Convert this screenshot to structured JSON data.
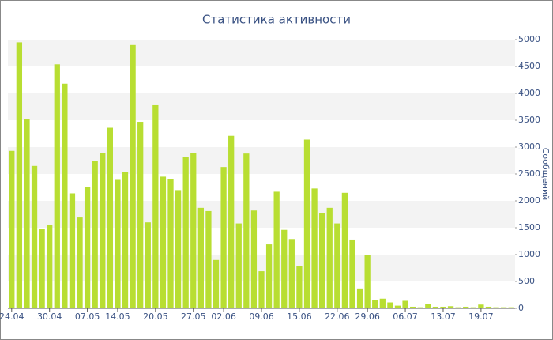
{
  "chart_data": {
    "type": "bar",
    "title": "Статистика активности",
    "y_label": "Сообщений",
    "categories": [
      "24.04",
      null,
      null,
      null,
      null,
      "30.04",
      null,
      null,
      null,
      null,
      "07.05",
      null,
      null,
      null,
      "14.05",
      null,
      null,
      null,
      null,
      "20.05",
      null,
      null,
      null,
      null,
      "27.05",
      null,
      null,
      null,
      "02.06",
      null,
      null,
      null,
      null,
      "09.06",
      null,
      null,
      null,
      null,
      "15.06",
      null,
      null,
      null,
      null,
      "22.06",
      null,
      null,
      null,
      "29.06",
      null,
      null,
      null,
      null,
      "06.07",
      null,
      null,
      null,
      null,
      "13.07",
      null,
      null,
      null,
      null,
      "19.07",
      null,
      null,
      null,
      null
    ],
    "values": [
      2930,
      4950,
      3520,
      2650,
      1480,
      1550,
      4540,
      4180,
      2140,
      1690,
      2260,
      2740,
      2890,
      3360,
      2390,
      2540,
      4900,
      3470,
      1600,
      3780,
      2450,
      2400,
      2200,
      2810,
      2890,
      1870,
      1810,
      900,
      2630,
      3210,
      1580,
      2880,
      1820,
      690,
      1190,
      2170,
      1460,
      1290,
      780,
      3140,
      2230,
      1770,
      1870,
      1580,
      2150,
      1280,
      370,
      1000,
      150,
      180,
      110,
      50,
      140,
      30,
      20,
      80,
      30,
      30,
      40,
      20,
      30,
      20,
      70,
      30,
      20,
      20,
      20
    ],
    "color": "#b8de32",
    "ylim": [
      0,
      5000
    ],
    "yticks": [
      0,
      500,
      1000,
      1500,
      2000,
      2500,
      3000,
      3500,
      4000,
      4500,
      5000
    ],
    "grid": true
  }
}
